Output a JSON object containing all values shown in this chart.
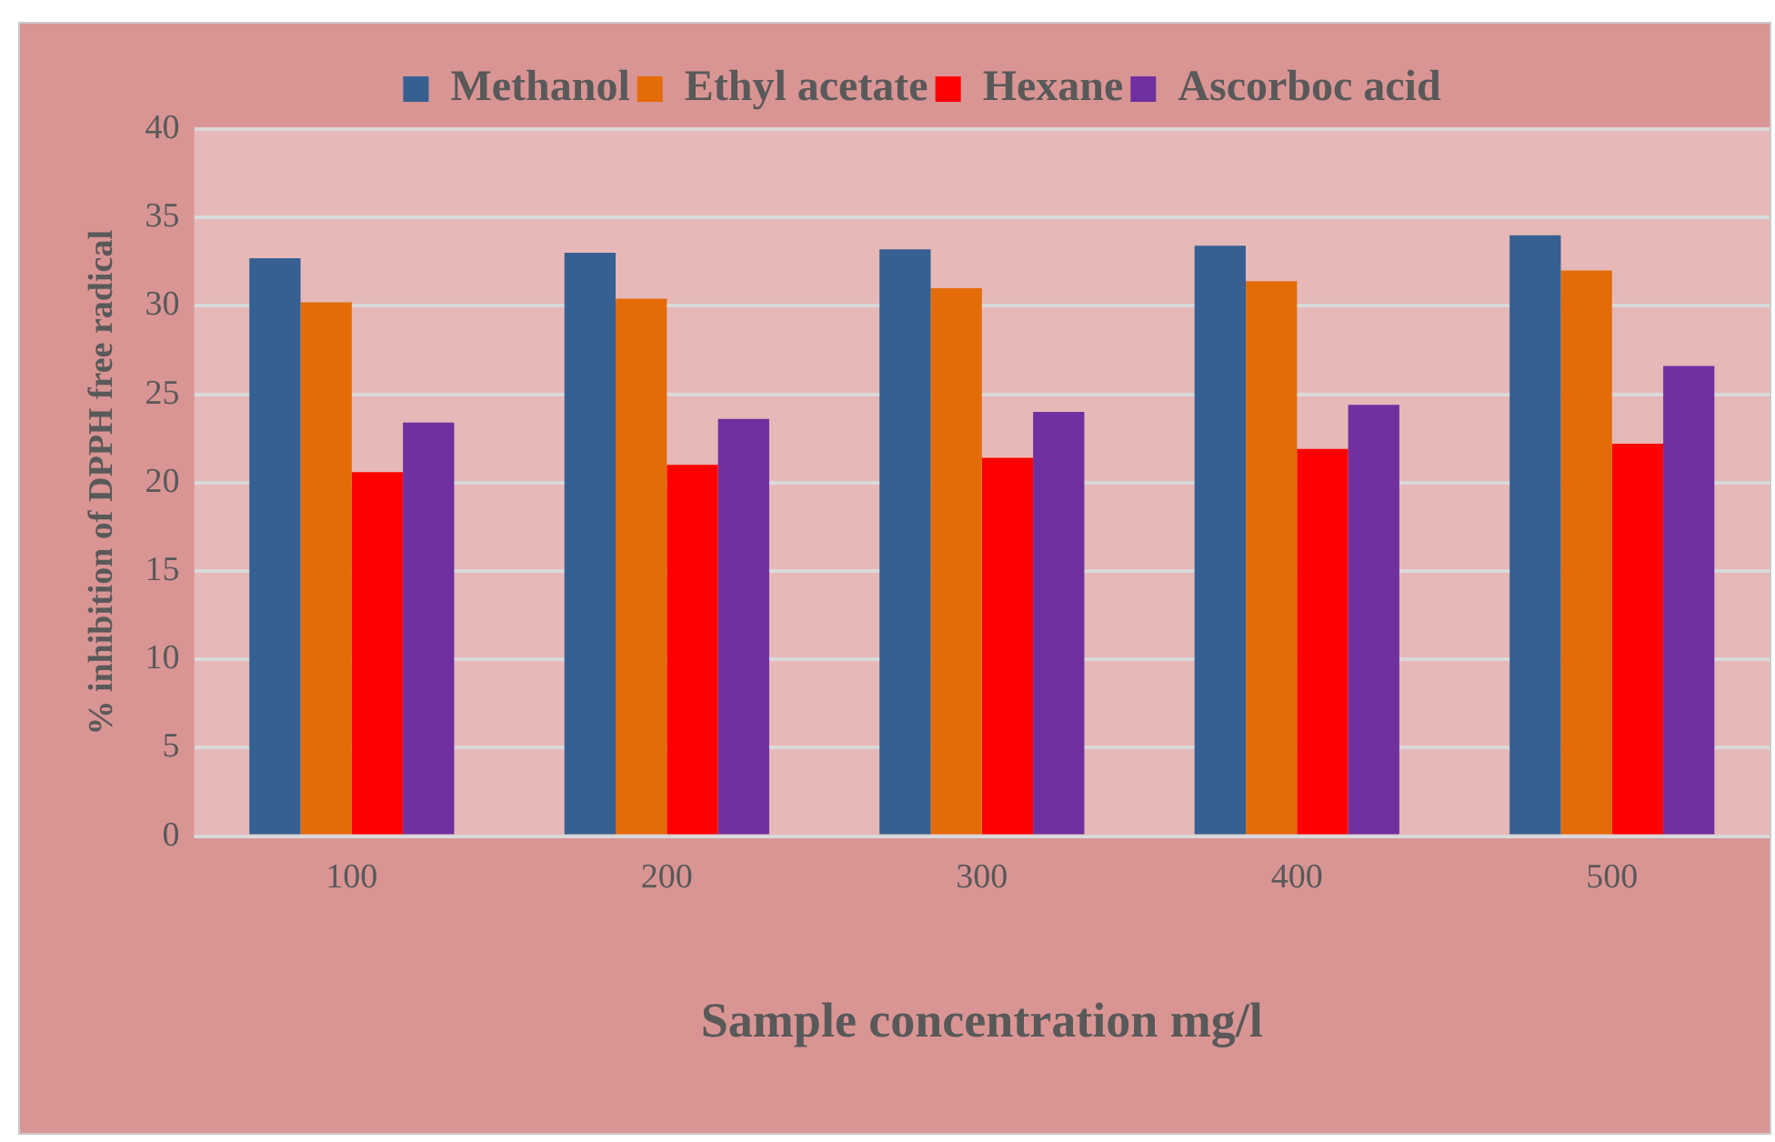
{
  "chart_data": {
    "type": "bar",
    "xlabel": "Sample concentration mg/l",
    "ylabel": "% inhibition of DPPH free radical",
    "categories": [
      "100",
      "200",
      "300",
      "400",
      "500"
    ],
    "series": [
      {
        "name": "Methanol",
        "color": "#366092",
        "values": [
          32.7,
          33.0,
          33.2,
          33.4,
          34.0
        ]
      },
      {
        "name": "Ethyl acetate",
        "color": "#e36c09",
        "values": [
          30.2,
          30.4,
          31.0,
          31.4,
          32.0
        ]
      },
      {
        "name": "Hexane",
        "color": "#ff0000",
        "values": [
          20.6,
          21.0,
          21.4,
          21.9,
          22.2
        ]
      },
      {
        "name": "Ascorboc acid",
        "color": "#7030a0",
        "values": [
          23.4,
          23.6,
          24.0,
          24.4,
          26.6
        ]
      }
    ],
    "ylim": [
      0,
      40
    ],
    "yticks": [
      0,
      5,
      10,
      15,
      20,
      25,
      30,
      35,
      40
    ],
    "grid": "y",
    "legend": "top"
  }
}
